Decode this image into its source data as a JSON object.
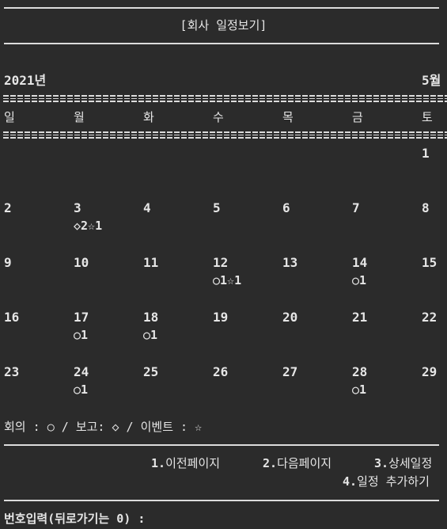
{
  "header": {
    "title": "[회사 일정보기]"
  },
  "calendar": {
    "year_label": "2021년",
    "month_label": "5월",
    "weekdays": [
      "일",
      "월",
      "화",
      "수",
      "목",
      "금",
      "토"
    ],
    "weeks": [
      [
        {
          "day": "",
          "events": ""
        },
        {
          "day": "",
          "events": ""
        },
        {
          "day": "",
          "events": ""
        },
        {
          "day": "",
          "events": ""
        },
        {
          "day": "",
          "events": ""
        },
        {
          "day": "",
          "events": ""
        },
        {
          "day": "1",
          "events": ""
        }
      ],
      [
        {
          "day": "2",
          "events": ""
        },
        {
          "day": "3",
          "events": "◇2☆1"
        },
        {
          "day": "4",
          "events": ""
        },
        {
          "day": "5",
          "events": ""
        },
        {
          "day": "6",
          "events": ""
        },
        {
          "day": "7",
          "events": ""
        },
        {
          "day": "8",
          "events": ""
        }
      ],
      [
        {
          "day": "9",
          "events": ""
        },
        {
          "day": "10",
          "events": ""
        },
        {
          "day": "11",
          "events": ""
        },
        {
          "day": "12",
          "events": "○1☆1"
        },
        {
          "day": "13",
          "events": ""
        },
        {
          "day": "14",
          "events": "○1"
        },
        {
          "day": "15",
          "events": ""
        }
      ],
      [
        {
          "day": "16",
          "events": ""
        },
        {
          "day": "17",
          "events": "○1"
        },
        {
          "day": "18",
          "events": "○1"
        },
        {
          "day": "19",
          "events": ""
        },
        {
          "day": "20",
          "events": ""
        },
        {
          "day": "21",
          "events": ""
        },
        {
          "day": "22",
          "events": ""
        }
      ],
      [
        {
          "day": "23",
          "events": ""
        },
        {
          "day": "24",
          "events": "○1"
        },
        {
          "day": "25",
          "events": ""
        },
        {
          "day": "26",
          "events": ""
        },
        {
          "day": "27",
          "events": ""
        },
        {
          "day": "28",
          "events": "○1"
        },
        {
          "day": "29",
          "events": ""
        }
      ]
    ]
  },
  "legend": {
    "text": "회의 : ○ / 보고: ◇ / 이벤트 : ☆"
  },
  "menu": {
    "items": [
      {
        "num": "1.",
        "label": "이전페이지"
      },
      {
        "num": "2.",
        "label": "다음페이지"
      },
      {
        "num": "3.",
        "label": "상세일정"
      },
      {
        "num": "4.",
        "label": "일정 추가하기"
      }
    ]
  },
  "prompt": {
    "text": "번호입력(뒤로가기는 0) :"
  }
}
